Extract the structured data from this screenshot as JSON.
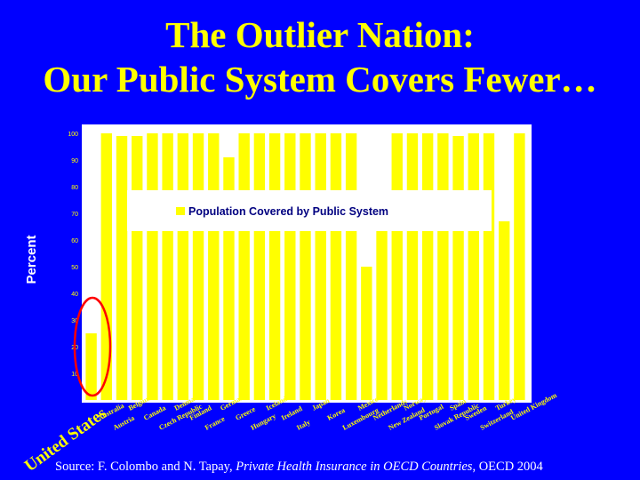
{
  "title_line1": "The Outlier Nation:",
  "title_line2": "Our Public System Covers Fewer…",
  "source": {
    "prefix": "Source: F. Colombo and N. Tapay, ",
    "work": "Private Health Insurance in OECD Countries",
    "suffix": ", OECD 2004"
  },
  "colors": {
    "background": "#0000ff",
    "bars": "#ffff00",
    "plot_area": "#ffffff",
    "highlight_circle": "#ff0000",
    "axis_text": "#ffff00"
  },
  "chart_data": {
    "type": "bar",
    "ylabel": "Percent",
    "xlabel": "",
    "ylim": [
      0,
      100
    ],
    "yticks": [
      10,
      20,
      30,
      40,
      50,
      60,
      70,
      80,
      90,
      100
    ],
    "grid": false,
    "legend": {
      "position": "top-center",
      "entries": [
        "Population Covered by Public System"
      ]
    },
    "categories": [
      "United States",
      "Australia",
      "Austria",
      "Belgium",
      "Canada",
      "Czech Republic",
      "Denmark",
      "Finland",
      "France",
      "Germany",
      "Greece",
      "Hungary",
      "Iceland",
      "Ireland",
      "Italy",
      "Japan",
      "Korea",
      "Luxembourg",
      "Mexico",
      "Netherlands",
      "New Zealand",
      "Norway",
      "Portugal",
      "Slovak Republic",
      "Spain",
      "Sweden",
      "Switzerland",
      "Turkey",
      "United Kingdom"
    ],
    "series": [
      {
        "name": "Population Covered by Public System",
        "values": [
          25,
          100,
          99,
          99,
          100,
          100,
          100,
          100,
          100,
          91,
          100,
          100,
          100,
          100,
          100,
          100,
          100,
          100,
          50,
          76,
          100,
          100,
          100,
          100,
          99,
          100,
          100,
          67,
          100
        ]
      }
    ],
    "highlight": "United States"
  }
}
